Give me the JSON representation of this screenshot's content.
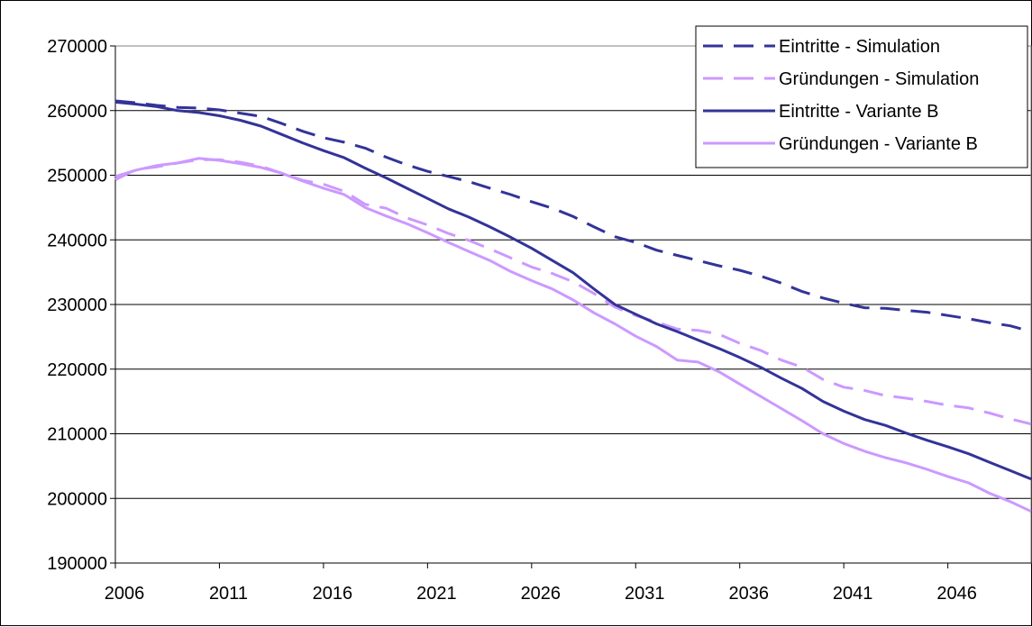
{
  "chart_data": {
    "type": "line",
    "title": "",
    "xlabel": "",
    "ylabel": "",
    "ylim": [
      190000,
      270000
    ],
    "yticks": [
      190000,
      200000,
      210000,
      220000,
      230000,
      240000,
      250000,
      260000,
      270000
    ],
    "ytick_labels": [
      "190000",
      "200000",
      "210000",
      "220000",
      "230000",
      "240000",
      "250000",
      "260000",
      "270000"
    ],
    "xlim": [
      2006,
      2050
    ],
    "xticks": [
      2006,
      2011,
      2016,
      2021,
      2026,
      2031,
      2036,
      2041,
      2046
    ],
    "xtick_labels": [
      "2006",
      "2011",
      "2016",
      "2021",
      "2026",
      "2031",
      "2036",
      "2041",
      "2046"
    ],
    "grid": "horizontal",
    "legend_position": "top-right",
    "x": [
      2006,
      2007,
      2008,
      2009,
      2010,
      2011,
      2012,
      2013,
      2014,
      2015,
      2016,
      2017,
      2018,
      2019,
      2020,
      2021,
      2022,
      2023,
      2024,
      2025,
      2026,
      2027,
      2028,
      2029,
      2030,
      2031,
      2032,
      2033,
      2034,
      2035,
      2036,
      2037,
      2038,
      2039,
      2040,
      2041,
      2042,
      2043,
      2044,
      2045,
      2046,
      2047,
      2048,
      2049,
      2050
    ],
    "series": [
      {
        "name": "Eintritte - Simulation",
        "color": "#333399",
        "style": "dashed",
        "values": [
          261500,
          261200,
          260800,
          260500,
          260400,
          260100,
          259600,
          259100,
          258000,
          256800,
          255800,
          255100,
          254200,
          252800,
          251600,
          250600,
          249800,
          249000,
          248000,
          247000,
          245900,
          244900,
          243600,
          242000,
          240500,
          239600,
          238400,
          237600,
          236800,
          236000,
          235300,
          234400,
          233300,
          232000,
          231000,
          230200,
          229500,
          229400,
          229100,
          228800,
          228300,
          227800,
          227200,
          226700,
          225800
        ]
      },
      {
        "name": "Gründungen - Simulation",
        "color": "#cc99ff",
        "style": "dashed",
        "values": [
          249300,
          250900,
          251300,
          251900,
          252400,
          252400,
          252000,
          251400,
          250300,
          249200,
          248600,
          247500,
          245500,
          244900,
          243400,
          242300,
          241000,
          239900,
          238600,
          237200,
          235800,
          234800,
          233500,
          231700,
          229600,
          228300,
          227300,
          226200,
          226000,
          225400,
          224000,
          222900,
          221400,
          220300,
          218400,
          217200,
          216700,
          215900,
          215500,
          215000,
          214400,
          214000,
          213200,
          212300,
          211500
        ]
      },
      {
        "name": "Eintritte - Variante B",
        "color": "#333399",
        "style": "solid",
        "values": [
          261300,
          261000,
          260600,
          260000,
          259700,
          259200,
          258500,
          257600,
          256300,
          255000,
          253800,
          252700,
          251100,
          249600,
          248000,
          246400,
          244800,
          243500,
          242000,
          240400,
          238700,
          236800,
          234900,
          232400,
          230000,
          228500,
          227000,
          225800,
          224500,
          223200,
          221800,
          220300,
          218600,
          217000,
          215000,
          213500,
          212200,
          211300,
          210100,
          209000,
          208000,
          206900,
          205600,
          204300,
          203000
        ]
      },
      {
        "name": "Gründungen - Variante B",
        "color": "#cc99ff",
        "style": "solid",
        "values": [
          249800,
          250800,
          251500,
          251900,
          252600,
          252300,
          251800,
          251200,
          250300,
          249100,
          248000,
          247000,
          245000,
          243700,
          242500,
          241100,
          239600,
          238200,
          236800,
          235100,
          233700,
          232400,
          230700,
          228700,
          227000,
          225100,
          223500,
          221400,
          221100,
          219600,
          217700,
          215800,
          213900,
          212000,
          210000,
          208500,
          207300,
          206300,
          205500,
          204500,
          203400,
          202400,
          200800,
          199500,
          198000
        ]
      }
    ]
  }
}
